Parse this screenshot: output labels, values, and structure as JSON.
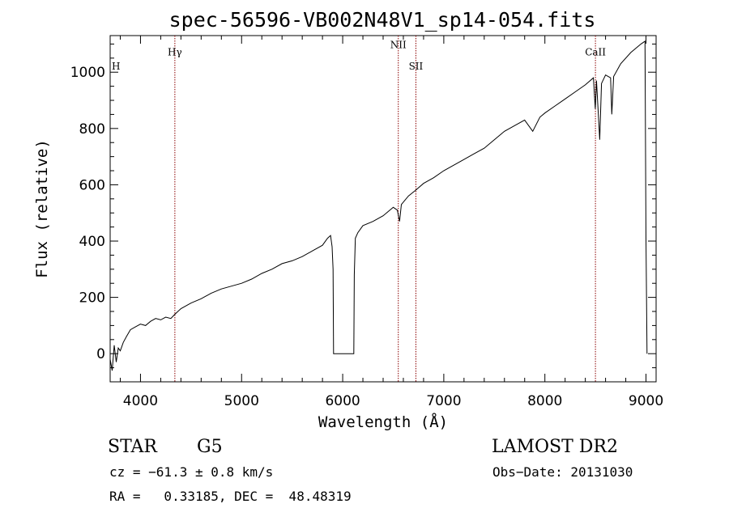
{
  "chart_data": {
    "type": "line",
    "title": "spec-56596-VB002N48V1_sp14-054.fits",
    "xlabel": "Wavelength (Å)",
    "ylabel": "Flux (relative)",
    "xlim": [
      3700,
      9100
    ],
    "ylim": [
      -100,
      1130
    ],
    "x_ticks": [
      4000,
      5000,
      6000,
      7000,
      8000,
      9000
    ],
    "y_ticks": [
      0,
      200,
      400,
      600,
      800,
      1000
    ],
    "x_tick_labels": [
      "4000",
      "5000",
      "6000",
      "7000",
      "8000",
      "9000"
    ],
    "y_tick_labels": [
      "0",
      "200",
      "400",
      "600",
      "800",
      "1000"
    ],
    "grid": false,
    "series": [
      {
        "points": [
          [
            3700,
            -20
          ],
          [
            3720,
            -60
          ],
          [
            3740,
            30
          ],
          [
            3760,
            -30
          ],
          [
            3780,
            20
          ],
          [
            3800,
            10
          ],
          [
            3830,
            40
          ],
          [
            3860,
            60
          ],
          [
            3900,
            85
          ],
          [
            3950,
            95
          ],
          [
            4000,
            105
          ],
          [
            4050,
            100
          ],
          [
            4100,
            115
          ],
          [
            4150,
            125
          ],
          [
            4200,
            120
          ],
          [
            4250,
            130
          ],
          [
            4300,
            125
          ],
          [
            4340,
            140
          ],
          [
            4400,
            160
          ],
          [
            4500,
            180
          ],
          [
            4600,
            195
          ],
          [
            4700,
            215
          ],
          [
            4800,
            230
          ],
          [
            4900,
            240
          ],
          [
            5000,
            250
          ],
          [
            5100,
            265
          ],
          [
            5200,
            285
          ],
          [
            5300,
            300
          ],
          [
            5400,
            320
          ],
          [
            5500,
            330
          ],
          [
            5600,
            345
          ],
          [
            5700,
            365
          ],
          [
            5800,
            385
          ],
          [
            5850,
            410
          ],
          [
            5880,
            420
          ],
          [
            5895,
            380
          ],
          [
            5905,
            300
          ],
          [
            5910,
            0
          ],
          [
            6000,
            0
          ],
          [
            6110,
            0
          ],
          [
            6115,
            280
          ],
          [
            6125,
            410
          ],
          [
            6150,
            430
          ],
          [
            6200,
            455
          ],
          [
            6300,
            470
          ],
          [
            6400,
            490
          ],
          [
            6500,
            520
          ],
          [
            6540,
            510
          ],
          [
            6563,
            470
          ],
          [
            6580,
            530
          ],
          [
            6650,
            560
          ],
          [
            6720,
            580
          ],
          [
            6800,
            605
          ],
          [
            6900,
            625
          ],
          [
            7000,
            650
          ],
          [
            7100,
            670
          ],
          [
            7200,
            690
          ],
          [
            7300,
            710
          ],
          [
            7400,
            730
          ],
          [
            7500,
            760
          ],
          [
            7600,
            790
          ],
          [
            7700,
            810
          ],
          [
            7800,
            830
          ],
          [
            7880,
            790
          ],
          [
            7950,
            840
          ],
          [
            8000,
            855
          ],
          [
            8100,
            880
          ],
          [
            8200,
            905
          ],
          [
            8300,
            930
          ],
          [
            8400,
            955
          ],
          [
            8480,
            980
          ],
          [
            8498,
            870
          ],
          [
            8510,
            970
          ],
          [
            8542,
            760
          ],
          [
            8560,
            960
          ],
          [
            8600,
            990
          ],
          [
            8650,
            980
          ],
          [
            8662,
            850
          ],
          [
            8680,
            985
          ],
          [
            8750,
            1030
          ],
          [
            8850,
            1070
          ],
          [
            8950,
            1100
          ],
          [
            8990,
            1110
          ],
          [
            9000,
            410
          ],
          [
            9010,
            0
          ]
        ]
      }
    ],
    "lines": [
      {
        "x": 4340,
        "label": "Hγ",
        "label_y": 1060
      },
      {
        "x": 6550,
        "label": "NII",
        "label_y": 1085
      },
      {
        "x": 6724,
        "label": "SII",
        "label_y": 1010
      },
      {
        "x": 8500,
        "label": "CaII",
        "label_y": 1060
      }
    ],
    "edge_label": "H",
    "edge_label_y": 1010
  },
  "info": {
    "object_class": "STAR",
    "subclass": "G5",
    "cz": "cz = −61.3 ± 0.8 km/s",
    "radec": "RA =   0.33185, DEC =  48.48319",
    "survey": "LAMOST DR2",
    "obs_date": "Obs−Date: 20131030"
  },
  "colors": {
    "spectrum": "#000000",
    "line_marker": "#8b0000",
    "axis": "#000000"
  }
}
